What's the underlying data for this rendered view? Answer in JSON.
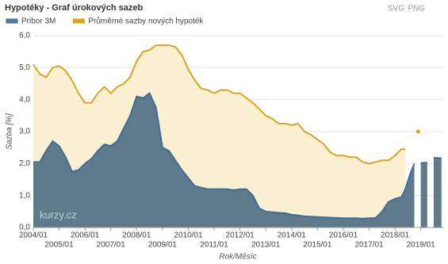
{
  "chart_data": {
    "type": "area",
    "title": "Hypotéky - Graf úrokových sazeb",
    "export_labels": [
      "SVG",
      "PNG"
    ],
    "y_label": "Sazba [%]",
    "x_label": "Rok/Měsíc",
    "watermark": "kurzy.cz",
    "grid": true,
    "legend": "top-left",
    "x": [
      2004.0,
      2004.25,
      2004.5,
      2004.75,
      2005.0,
      2005.25,
      2005.5,
      2005.75,
      2006.0,
      2006.25,
      2006.5,
      2006.75,
      2007.0,
      2007.25,
      2007.5,
      2007.75,
      2008.0,
      2008.25,
      2008.5,
      2008.75,
      2009.0,
      2009.25,
      2009.5,
      2009.75,
      2010.0,
      2010.25,
      2010.5,
      2010.75,
      2011.0,
      2011.25,
      2011.5,
      2011.75,
      2012.0,
      2012.25,
      2012.5,
      2012.75,
      2013.0,
      2013.25,
      2013.5,
      2013.75,
      2014.0,
      2014.25,
      2014.5,
      2014.75,
      2015.0,
      2015.25,
      2015.5,
      2015.75,
      2016.0,
      2016.25,
      2016.5,
      2016.75,
      2017.0,
      2017.25,
      2017.5,
      2017.75,
      2018.0,
      2018.25,
      2018.4,
      2018.6,
      2018.75,
      2018.9,
      2019.0,
      2019.25,
      2019.4,
      2019.5,
      2019.8
    ],
    "series": [
      {
        "name": "Průměrné sazby nových hypoték",
        "color": "#d9a520",
        "fill": "#fbf0d2",
        "values": [
          5.1,
          4.8,
          4.7,
          5.0,
          5.05,
          4.9,
          4.6,
          4.2,
          3.9,
          3.9,
          4.2,
          4.4,
          4.2,
          4.4,
          4.5,
          4.7,
          5.2,
          5.5,
          5.55,
          5.7,
          5.7,
          5.7,
          5.65,
          5.4,
          4.95,
          4.6,
          4.35,
          4.3,
          4.2,
          4.3,
          4.3,
          4.2,
          4.2,
          4.05,
          3.9,
          3.7,
          3.5,
          3.4,
          3.25,
          3.25,
          3.2,
          3.25,
          3.0,
          2.9,
          2.75,
          2.6,
          2.35,
          2.25,
          2.25,
          2.2,
          2.2,
          2.05,
          2.0,
          2.05,
          2.1,
          2.1,
          2.25,
          2.45,
          2.45,
          null,
          null,
          3.0,
          null,
          null,
          null,
          null,
          null
        ]
      },
      {
        "name": "Pribor 3M",
        "color": "#3d6d99",
        "fill": "#5f7b8b",
        "values": [
          2.05,
          2.05,
          2.4,
          2.7,
          2.55,
          2.2,
          1.75,
          1.8,
          2.0,
          2.15,
          2.4,
          2.6,
          2.55,
          2.7,
          3.1,
          3.5,
          4.1,
          4.05,
          4.2,
          3.75,
          2.5,
          2.4,
          2.1,
          1.8,
          1.55,
          1.3,
          1.25,
          1.2,
          1.2,
          1.2,
          1.2,
          1.17,
          1.2,
          1.2,
          1.0,
          0.6,
          0.5,
          0.48,
          0.46,
          0.45,
          0.4,
          0.38,
          0.35,
          0.34,
          0.33,
          0.32,
          0.31,
          0.3,
          0.29,
          0.29,
          0.29,
          0.28,
          0.29,
          0.3,
          0.5,
          0.8,
          0.9,
          0.95,
          1.2,
          1.7,
          2.0,
          null,
          2.02,
          2.03,
          null,
          2.18,
          2.17
        ]
      }
    ],
    "xlim": [
      2004.0,
      2019.9
    ],
    "xticks": [
      {
        "value": 2004,
        "label": "2004/01"
      },
      {
        "value": 2005,
        "label": "2005/01"
      },
      {
        "value": 2006,
        "label": "2006/01"
      },
      {
        "value": 2007,
        "label": "2007/01"
      },
      {
        "value": 2008,
        "label": "2008/01"
      },
      {
        "value": 2009,
        "label": "2009/01"
      },
      {
        "value": 2010,
        "label": "2010/01"
      },
      {
        "value": 2011,
        "label": "2011/01"
      },
      {
        "value": 2012,
        "label": "2012/01"
      },
      {
        "value": 2013,
        "label": "2013/01"
      },
      {
        "value": 2014,
        "label": "2014/01"
      },
      {
        "value": 2015,
        "label": "2015/01"
      },
      {
        "value": 2016,
        "label": "2016/01"
      },
      {
        "value": 2017,
        "label": "2017/01"
      },
      {
        "value": 2018,
        "label": "2018/01"
      },
      {
        "value": 2019,
        "label": "2019/01"
      }
    ],
    "ylim": [
      0,
      6
    ],
    "yticks": [
      {
        "value": 0,
        "label": "0,0"
      },
      {
        "value": 1,
        "label": "1,0"
      },
      {
        "value": 2,
        "label": "2,0"
      },
      {
        "value": 3,
        "label": "3,0"
      },
      {
        "value": 4,
        "label": "4,0"
      },
      {
        "value": 5,
        "label": "5,0"
      },
      {
        "value": 6,
        "label": "6,0"
      }
    ]
  }
}
